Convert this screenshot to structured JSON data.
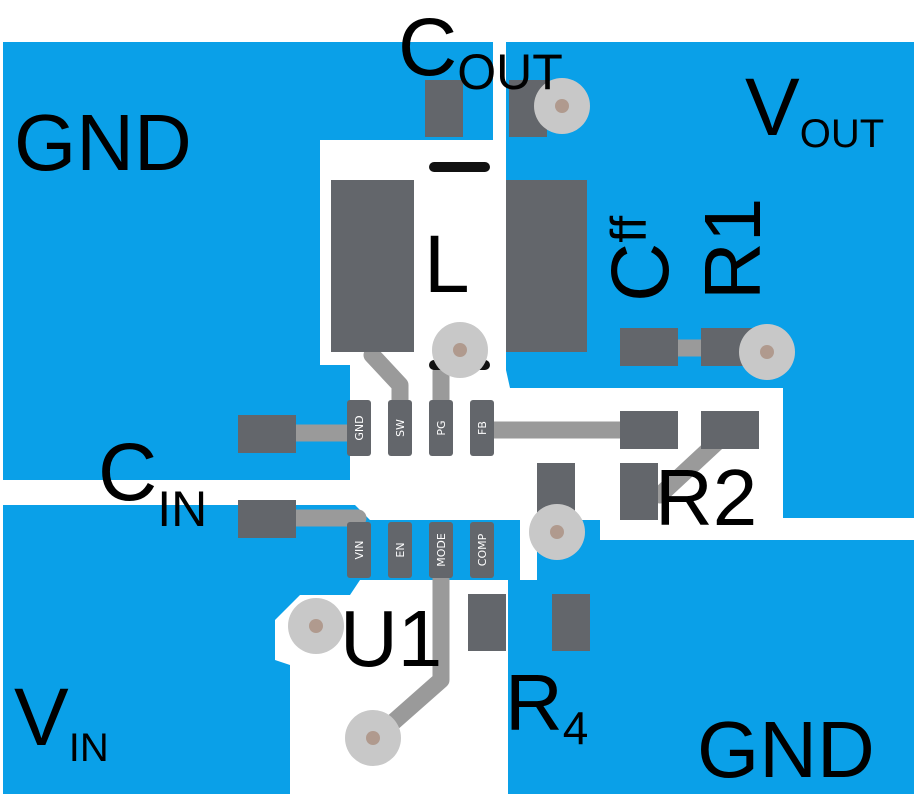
{
  "labels": {
    "gnd_top_left": "GND",
    "gnd_bottom_right": "GND",
    "cout_main": "C",
    "cout_sub": "OUT",
    "vout_main": "V",
    "vout_sub": "OUT",
    "vin_main": "V",
    "vin_sub": "IN",
    "cin_main": "C",
    "cin_sub": "IN",
    "inductor": "L",
    "cff_main": "C",
    "cff_sub": "ff",
    "r1": "R1",
    "r2": "R2",
    "r4_main": "R",
    "r4_sub": "4",
    "u1": "U1"
  },
  "pins": {
    "gnd": "GND",
    "sw": "SW",
    "pg": "PG",
    "fb": "FB",
    "vin": "VIN",
    "en": "EN",
    "mode": "MODE",
    "comp": "COMP"
  },
  "colors": {
    "copper": "#0aa0e8",
    "pad": "#63666b",
    "trace": "#9a9a9a",
    "via_ring": "#c8c8c8",
    "via_hole": "#b09a8e",
    "silk_bar": "#111111",
    "text": "#000000"
  }
}
